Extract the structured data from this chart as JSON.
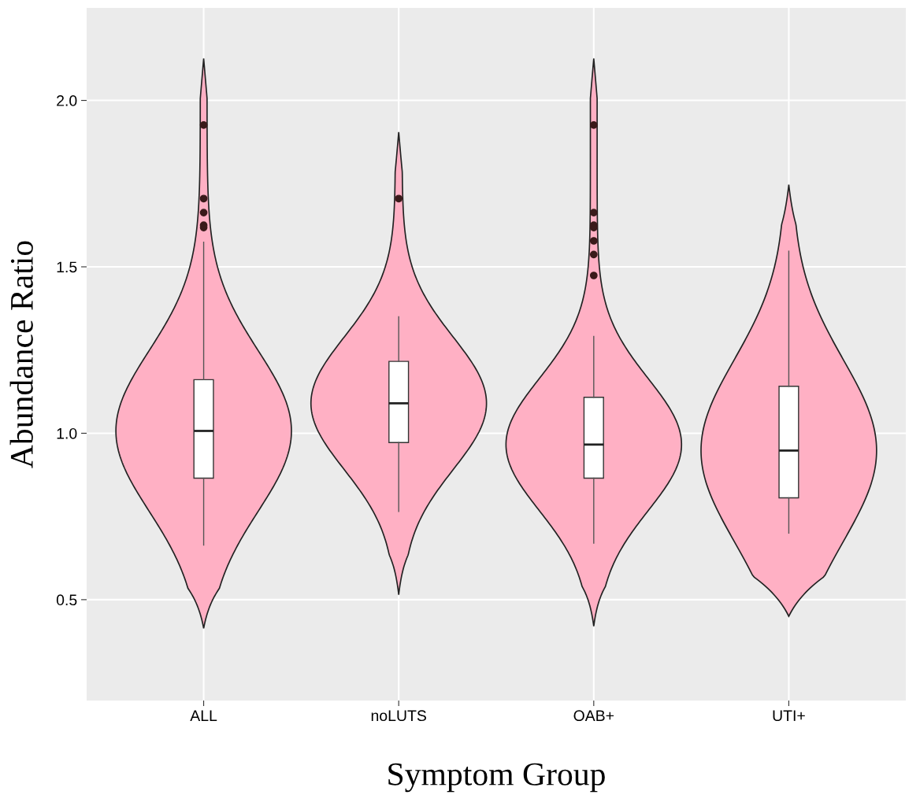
{
  "chart_data": {
    "type": "box",
    "xlabel": "Symptom Group",
    "ylabel": "Abundance Ratio",
    "categories": [
      "ALL",
      "noLUTS",
      "OAB+",
      "UTI+"
    ],
    "boxes": [
      {
        "low": 0.664,
        "q1": 0.865,
        "median": 1.007,
        "q3": 1.161,
        "high": 1.574,
        "outliers": [
          1.926,
          1.705,
          1.663,
          1.625,
          1.618
        ]
      },
      {
        "low": 0.765,
        "q1": 0.972,
        "median": 1.09,
        "q3": 1.216,
        "high": 1.35,
        "outliers": [
          1.705
        ]
      },
      {
        "low": 0.67,
        "q1": 0.865,
        "median": 0.966,
        "q3": 1.108,
        "high": 1.291,
        "outliers": [
          1.926,
          1.663,
          1.625,
          1.618,
          1.578,
          1.537,
          1.474
        ]
      },
      {
        "low": 0.7,
        "q1": 0.806,
        "median": 0.948,
        "q3": 1.141,
        "high": 1.547
      }
    ],
    "color": "#ffffff",
    "ylim": [
      0.197,
      2.278
    ],
    "yticks": [
      {
        "value": 0.5,
        "label": "0.5"
      },
      {
        "value": 1.0,
        "label": "1.0"
      },
      {
        "value": 1.5,
        "label": "1.5"
      },
      {
        "value": 2.0,
        "label": "2.0"
      }
    ],
    "grid": true
  }
}
